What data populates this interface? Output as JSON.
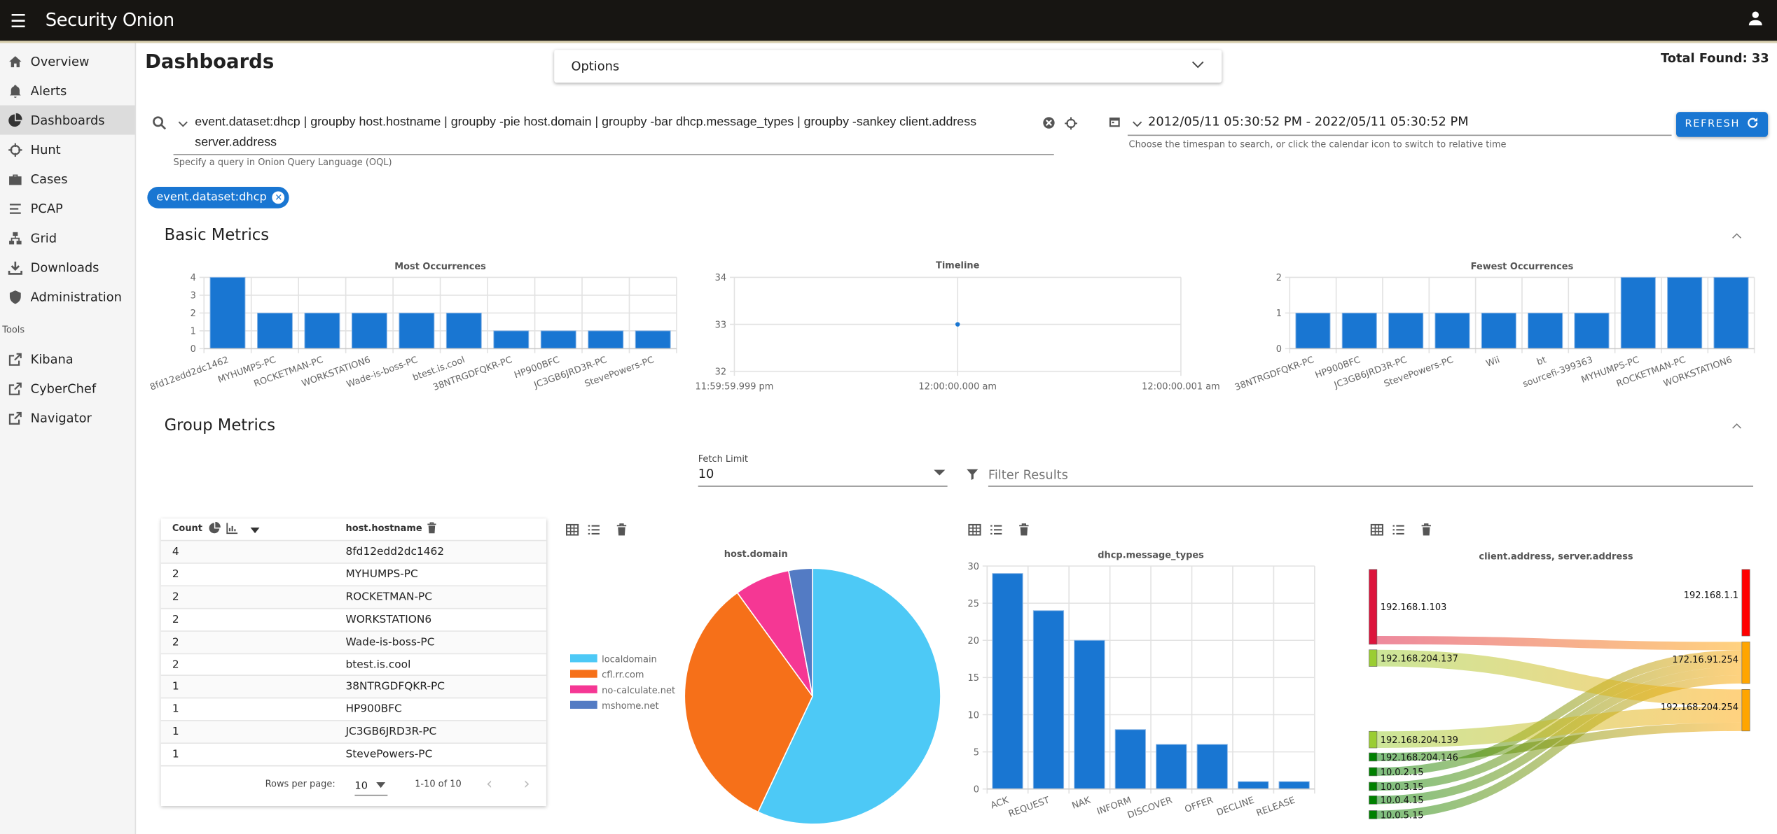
{
  "topbar": {
    "app_title": "Security Onion",
    "menu_icon": "hamburger-icon",
    "user_icon": "account-icon"
  },
  "sidebar": {
    "items": [
      {
        "label": "Overview",
        "icon": "home-icon"
      },
      {
        "label": "Alerts",
        "icon": "bell-icon"
      },
      {
        "label": "Dashboards",
        "icon": "chart-pie-icon",
        "active": true
      },
      {
        "label": "Hunt",
        "icon": "crosshairs-icon"
      },
      {
        "label": "Cases",
        "icon": "briefcase-icon"
      },
      {
        "label": "PCAP",
        "icon": "stream-icon"
      },
      {
        "label": "Grid",
        "icon": "network-icon"
      },
      {
        "label": "Downloads",
        "icon": "download-icon"
      },
      {
        "label": "Administration",
        "icon": "shield-icon"
      }
    ],
    "tools_label": "Tools",
    "tools": [
      {
        "label": "Kibana",
        "icon": "external-link-icon"
      },
      {
        "label": "CyberChef",
        "icon": "external-link-icon"
      },
      {
        "label": "Navigator",
        "icon": "external-link-icon"
      }
    ]
  },
  "header": {
    "title": "Dashboards",
    "options_label": "Options",
    "total_found": "Total Found: 33"
  },
  "search": {
    "query_line1": "event.dataset:dhcp | groupby host.hostname | groupby -pie host.domain | groupby -bar dhcp.message_types | groupby -sankey client.address",
    "query_line2": "server.address",
    "hint": "Specify a query in Onion Query Language (OQL)",
    "date_range": "2012/05/11 05:30:52 PM - 2022/05/11 05:30:52 PM",
    "date_hint": "Choose the timespan to search, or click the calendar icon to switch to relative time",
    "refresh_label": "REFRESH"
  },
  "filters": [
    {
      "label": "event.dataset:dhcp"
    }
  ],
  "basic_metrics": {
    "heading": "Basic Metrics"
  },
  "group_metrics": {
    "heading": "Group Metrics",
    "fetch_limit_label": "Fetch Limit",
    "fetch_limit_value": "10",
    "filter_placeholder": "Filter Results"
  },
  "table": {
    "headers": [
      "Count",
      "host.hostname"
    ],
    "rows": [
      [
        "4",
        "8fd12edd2dc1462"
      ],
      [
        "2",
        "MYHUMPS-PC"
      ],
      [
        "2",
        "ROCKETMAN-PC"
      ],
      [
        "2",
        "WORKSTATION6"
      ],
      [
        "2",
        "Wade-is-boss-PC"
      ],
      [
        "2",
        "btest.is.cool"
      ],
      [
        "1",
        "38NTRGDFQKR-PC"
      ],
      [
        "1",
        "HP900BFC"
      ],
      [
        "1",
        "JC3GB6JRD3R-PC"
      ],
      [
        "1",
        "StevePowers-PC"
      ]
    ],
    "rows_per_page_label": "Rows per page:",
    "rows_per_page_value": "10",
    "page_info": "1-10 of 10"
  },
  "colors": {
    "accent": "#1976d2",
    "bar": "#1976d2",
    "topbar": "#171512"
  },
  "chart_data": [
    {
      "type": "bar",
      "title": "Most Occurrences",
      "ylim": [
        0,
        4
      ],
      "yticks": [
        0,
        1,
        2,
        3,
        4
      ],
      "categories": [
        "8fd12edd2dc1462",
        "MYHUMPS-PC",
        "ROCKETMAN-PC",
        "WORKSTATION6",
        "Wade-is-boss-PC",
        "btest.is.cool",
        "38NTRGDFQKR-PC",
        "HP900BFC",
        "JC3GB6JRD3R-PC",
        "StevePowers-PC"
      ],
      "values": [
        4,
        2,
        2,
        2,
        2,
        2,
        1,
        1,
        1,
        1
      ],
      "grid": true
    },
    {
      "type": "line",
      "title": "Timeline",
      "ylim": [
        32,
        34
      ],
      "yticks": [
        32,
        33,
        34
      ],
      "xticks": [
        "11:59:59.999 pm",
        "12:00:00.000 am",
        "12:00:00.001 am"
      ],
      "x": [
        "12:00:00.000 am"
      ],
      "values": [
        33
      ],
      "grid": true
    },
    {
      "type": "bar",
      "title": "Fewest Occurrences",
      "ylim": [
        0,
        2
      ],
      "yticks": [
        0,
        1,
        2
      ],
      "categories": [
        "38NTRGDFQKR-PC",
        "HP900BFC",
        "JC3GB6JRD3R-PC",
        "StevePowers-PC",
        "Wii",
        "bt",
        "sourcefi-399363",
        "MYHUMPS-PC",
        "ROCKETMAN-PC",
        "WORKSTATION6"
      ],
      "values": [
        1,
        1,
        1,
        1,
        1,
        1,
        1,
        2,
        2,
        2
      ],
      "grid": true
    },
    {
      "type": "pie",
      "title": "host.domain",
      "legend": "left",
      "categories": [
        "localdomain",
        "cfl.rr.com",
        "no-calculate.net",
        "mshome.net"
      ],
      "values": [
        57,
        33,
        7,
        3
      ],
      "colors": [
        "#4dc9f6",
        "#f67019",
        "#f53794",
        "#537bc4"
      ]
    },
    {
      "type": "bar",
      "title": "dhcp.message_types",
      "ylim": [
        0,
        30
      ],
      "yticks": [
        0,
        5,
        10,
        15,
        20,
        25,
        30
      ],
      "categories": [
        "ACK",
        "REQUEST",
        "NAK",
        "INFORM",
        "DISCOVER",
        "OFFER",
        "DECLINE",
        "RELEASE"
      ],
      "values": [
        29,
        24,
        20,
        8,
        6,
        6,
        1,
        1
      ],
      "grid": true
    },
    {
      "type": "sankey",
      "title": "client.address, server.address",
      "sources": [
        {
          "name": "192.168.1.103",
          "color": "#dc143c"
        },
        {
          "name": "192.168.204.137",
          "color": "#9acd32"
        },
        {
          "name": "192.168.204.139",
          "color": "#9acd32"
        },
        {
          "name": "192.168.204.146",
          "color": "#008000"
        },
        {
          "name": "10.0.2.15",
          "color": "#008000"
        },
        {
          "name": "10.0.3.15",
          "color": "#008000"
        },
        {
          "name": "10.0.4.15",
          "color": "#008000"
        },
        {
          "name": "10.0.5.15",
          "color": "#008000"
        }
      ],
      "targets": [
        {
          "name": "192.168.1.1",
          "color": "#ff0000"
        },
        {
          "name": "172.16.91.254",
          "color": "#ffa500"
        },
        {
          "name": "192.168.204.254",
          "color": "#ffa500"
        }
      ],
      "links": [
        {
          "source": "192.168.1.103",
          "target": "192.168.1.1",
          "value": 8
        },
        {
          "source": "192.168.1.103",
          "target": "172.16.91.254",
          "value": 1
        },
        {
          "source": "10.0.2.15",
          "target": "172.16.91.254",
          "value": 1
        },
        {
          "source": "10.0.3.15",
          "target": "172.16.91.254",
          "value": 1
        },
        {
          "source": "10.0.4.15",
          "target": "172.16.91.254",
          "value": 1
        },
        {
          "source": "10.0.5.15",
          "target": "172.16.91.254",
          "value": 1
        },
        {
          "source": "192.168.204.137",
          "target": "192.168.204.254",
          "value": 2
        },
        {
          "source": "192.168.204.139",
          "target": "192.168.204.254",
          "value": 2
        },
        {
          "source": "192.168.204.146",
          "target": "192.168.204.254",
          "value": 1
        }
      ]
    }
  ]
}
